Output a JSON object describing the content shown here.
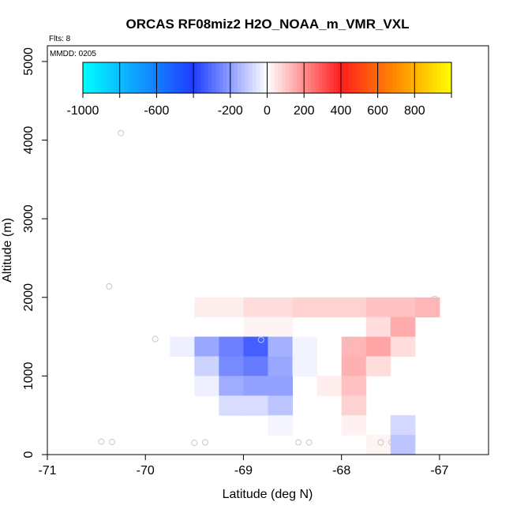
{
  "chart_data": {
    "type": "heatmap",
    "title": "ORCAS RF08miz2 H2O_NOAA_m_VMR_VXL",
    "xlabel": "Latitude (deg N)",
    "ylabel": "Altitude (m)",
    "corner_note": "Flts: 8",
    "panel_note": "MMDD: 0205",
    "xlim": [
      -71,
      -66.5
    ],
    "ylim": [
      0,
      5200
    ],
    "x_ticks": [
      -71,
      -70,
      -69,
      -68,
      -67
    ],
    "x_tick_labels": [
      "-71",
      "-70",
      "-69",
      "-68",
      "-67"
    ],
    "y_ticks": [
      0,
      1000,
      2000,
      3000,
      4000,
      5000
    ],
    "y_tick_labels": [
      "0",
      "1000",
      "2000",
      "3000",
      "4000",
      "5000"
    ],
    "grid": false,
    "colorbar": {
      "placement": "top-inside",
      "range": [
        -1000,
        1000
      ],
      "boundaries": [
        -1000,
        -800,
        -600,
        -400,
        -200,
        0,
        200,
        400,
        600,
        800,
        1000
      ],
      "tick_values": [
        -1000,
        -600,
        -200,
        0,
        200,
        400,
        600,
        800
      ],
      "tick_labels": [
        "-1000",
        "-600",
        "-200",
        "0",
        "200",
        "400",
        "600",
        "800"
      ],
      "colors": {
        "min": "#00ffff",
        "mid_neg": "#1e3cff",
        "zero": "#ffffff",
        "mid_pos": "#ff1e1e",
        "max_stop": "#ff8c00",
        "max": "#ffff00"
      }
    },
    "cell_size": {
      "dlat": 0.25,
      "dalt": 250
    },
    "cells": [
      {
        "lat": -69.375,
        "alt": 1875,
        "value": 30
      },
      {
        "lat": -69.125,
        "alt": 1875,
        "value": 30
      },
      {
        "lat": -68.875,
        "alt": 1875,
        "value": 60
      },
      {
        "lat": -68.625,
        "alt": 1875,
        "value": 60
      },
      {
        "lat": -68.375,
        "alt": 1875,
        "value": 80
      },
      {
        "lat": -68.125,
        "alt": 1875,
        "value": 80
      },
      {
        "lat": -67.875,
        "alt": 1875,
        "value": 80
      },
      {
        "lat": -67.625,
        "alt": 1875,
        "value": 110
      },
      {
        "lat": -67.375,
        "alt": 1875,
        "value": 110
      },
      {
        "lat": -67.125,
        "alt": 1875,
        "value": 130
      },
      {
        "lat": -68.875,
        "alt": 1625,
        "value": 20
      },
      {
        "lat": -68.625,
        "alt": 1625,
        "value": 20
      },
      {
        "lat": -67.625,
        "alt": 1625,
        "value": 60
      },
      {
        "lat": -67.375,
        "alt": 1625,
        "value": 150
      },
      {
        "lat": -69.625,
        "alt": 1375,
        "value": -30
      },
      {
        "lat": -69.375,
        "alt": 1375,
        "value": -180
      },
      {
        "lat": -69.125,
        "alt": 1375,
        "value": -260
      },
      {
        "lat": -68.875,
        "alt": 1375,
        "value": -330
      },
      {
        "lat": -68.625,
        "alt": 1375,
        "value": -160
      },
      {
        "lat": -68.375,
        "alt": 1375,
        "value": -25
      },
      {
        "lat": -67.875,
        "alt": 1375,
        "value": 130
      },
      {
        "lat": -67.625,
        "alt": 1375,
        "value": 160
      },
      {
        "lat": -67.375,
        "alt": 1375,
        "value": 60
      },
      {
        "lat": -69.375,
        "alt": 1125,
        "value": -90
      },
      {
        "lat": -69.125,
        "alt": 1125,
        "value": -240
      },
      {
        "lat": -68.875,
        "alt": 1125,
        "value": -270
      },
      {
        "lat": -68.625,
        "alt": 1125,
        "value": -180
      },
      {
        "lat": -68.375,
        "alt": 1125,
        "value": -25
      },
      {
        "lat": -67.875,
        "alt": 1125,
        "value": 140
      },
      {
        "lat": -67.625,
        "alt": 1125,
        "value": 60
      },
      {
        "lat": -69.375,
        "alt": 875,
        "value": -30
      },
      {
        "lat": -69.125,
        "alt": 875,
        "value": -170
      },
      {
        "lat": -68.875,
        "alt": 875,
        "value": -190
      },
      {
        "lat": -68.625,
        "alt": 875,
        "value": -190
      },
      {
        "lat": -68.125,
        "alt": 875,
        "value": 30
      },
      {
        "lat": -67.875,
        "alt": 875,
        "value": 110
      },
      {
        "lat": -69.125,
        "alt": 625,
        "value": -70
      },
      {
        "lat": -68.875,
        "alt": 625,
        "value": -70
      },
      {
        "lat": -68.625,
        "alt": 625,
        "value": -120
      },
      {
        "lat": -67.875,
        "alt": 625,
        "value": 80
      },
      {
        "lat": -68.625,
        "alt": 375,
        "value": -20
      },
      {
        "lat": -67.875,
        "alt": 375,
        "value": 25
      },
      {
        "lat": -67.375,
        "alt": 375,
        "value": -80
      },
      {
        "lat": -67.625,
        "alt": 125,
        "value": 20
      },
      {
        "lat": -67.375,
        "alt": 125,
        "value": -120
      }
    ],
    "points": [
      {
        "lat": -70.25,
        "alt": 4090
      },
      {
        "lat": -70.37,
        "alt": 2140
      },
      {
        "lat": -69.9,
        "alt": 1470
      },
      {
        "lat": -68.82,
        "alt": 1460
      },
      {
        "lat": -67.93,
        "alt": 1460
      },
      {
        "lat": -67.05,
        "alt": 1980
      },
      {
        "lat": -70.45,
        "alt": 165
      },
      {
        "lat": -70.34,
        "alt": 160
      },
      {
        "lat": -69.5,
        "alt": 150
      },
      {
        "lat": -69.39,
        "alt": 155
      },
      {
        "lat": -68.44,
        "alt": 155
      },
      {
        "lat": -68.33,
        "alt": 155
      },
      {
        "lat": -67.6,
        "alt": 155
      },
      {
        "lat": -67.49,
        "alt": 155
      }
    ]
  }
}
